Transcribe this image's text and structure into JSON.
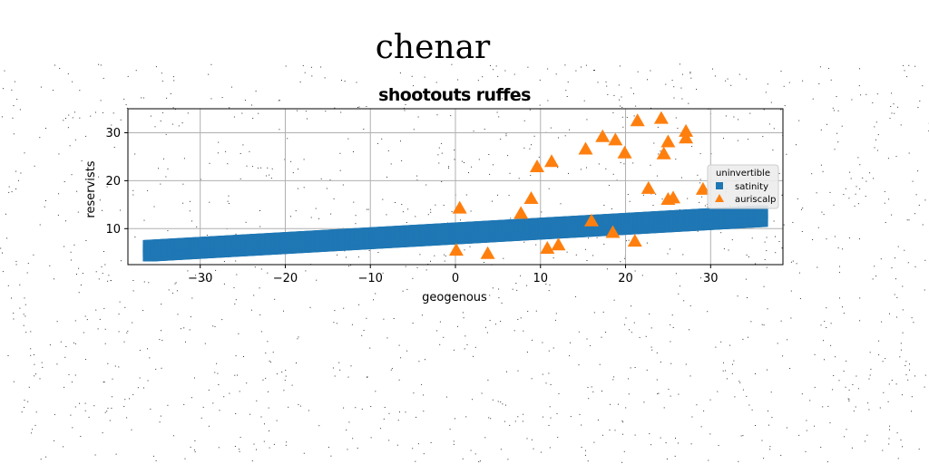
{
  "figure": {
    "suptitle": "chenar"
  },
  "chart_data": {
    "type": "scatter",
    "title": "shootouts ruffes",
    "xlabel": "geogenous",
    "ylabel": "reservists",
    "xlim": [
      -38.5,
      38.5
    ],
    "ylim": [
      2.5,
      35
    ],
    "xticks": [
      -30,
      -20,
      -10,
      0,
      10,
      20,
      30
    ],
    "yticks": [
      10,
      20,
      30
    ],
    "xtick_labels": [
      "−30",
      "−20",
      "−10",
      "0",
      "10",
      "20",
      "30"
    ],
    "ytick_labels": [
      "10",
      "20",
      "30"
    ],
    "grid": true,
    "legend": {
      "title": "uninvertible",
      "placement": "right",
      "entries": [
        "satinity",
        "auriscalp"
      ]
    },
    "series": [
      {
        "name": "satinity",
        "marker": "square",
        "color": "#1f77b4",
        "x_range": [
          -36,
          36
        ],
        "y_line": {
          "slope": 0.1,
          "intercept": 9.0
        },
        "band_halfwidth": 1.65,
        "point_count": 400
      },
      {
        "name": "auriscalp",
        "marker": "triangle",
        "color": "#ff7f0e",
        "x": [
          0.1,
          0.5,
          3.8,
          7.7,
          8.9,
          9.6,
          10.8,
          11.3,
          12.1,
          15.3,
          16.0,
          17.3,
          18.5,
          18.8,
          19.9,
          21.1,
          21.4,
          22.7,
          24.2,
          24.5,
          25.0,
          25.0,
          25.6,
          27.1,
          27.1,
          29.1
        ],
        "y": [
          5.5,
          14.3,
          4.8,
          13.2,
          16.3,
          22.9,
          5.9,
          24.0,
          6.6,
          26.6,
          11.6,
          29.2,
          9.2,
          28.5,
          25.8,
          7.4,
          32.5,
          18.4,
          33.0,
          25.6,
          16.1,
          28.1,
          16.4,
          30.3,
          28.9,
          18.2
        ]
      }
    ]
  }
}
